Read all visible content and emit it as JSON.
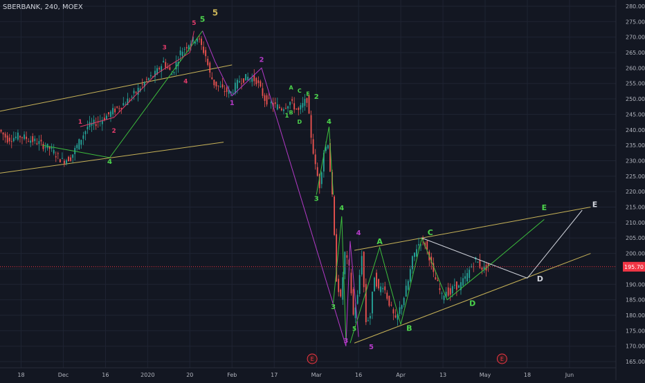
{
  "header": {
    "title": "SBERBANK, 240, MOEX"
  },
  "colors": {
    "background": "#131722",
    "grid": "#1f2433",
    "text": "#b2b5be",
    "up": "#26a69a",
    "down": "#ef5350",
    "channel": "#c9b458",
    "wave_green": "#3dbf3d",
    "wave_green_label": "#4cd44c",
    "wave_magenta": "#b43ac8",
    "wave_pink": "#e03a6a",
    "triangle": "#d1d4dc",
    "price_line": "#f23645"
  },
  "chart_data": {
    "type": "candlestick",
    "yaxis": {
      "ticks": [
        165,
        170,
        175,
        180,
        185,
        190,
        195,
        200,
        205,
        210,
        215,
        220,
        225,
        230,
        235,
        240,
        245,
        250,
        255,
        260,
        265,
        270,
        275,
        280
      ],
      "tick_format": ".2f",
      "ylim": [
        163,
        282
      ]
    },
    "xaxis": {
      "ticks": [
        {
          "label": "18",
          "x": 6
        },
        {
          "label": "Dec",
          "x": 16
        },
        {
          "label": "16",
          "x": 26
        },
        {
          "label": "2020",
          "x": 36
        },
        {
          "label": "20",
          "x": 46
        },
        {
          "label": "Feb",
          "x": 56
        },
        {
          "label": "17",
          "x": 66
        },
        {
          "label": "Mar",
          "x": 76
        },
        {
          "label": "16",
          "x": 86
        },
        {
          "label": "Apr",
          "x": 96
        },
        {
          "label": "13",
          "x": 106
        },
        {
          "label": "May",
          "x": 116
        },
        {
          "label": "18",
          "x": 126
        },
        {
          "label": "Jun",
          "x": 136
        }
      ],
      "xlim": [
        1,
        147
      ]
    },
    "last_price": {
      "value": 195.7,
      "label": "195.70"
    },
    "price_path": [
      [
        1,
        240
      ],
      [
        3,
        237
      ],
      [
        6,
        238
      ],
      [
        10,
        236
      ],
      [
        13,
        234
      ],
      [
        16,
        230
      ],
      [
        18,
        231
      ],
      [
        20,
        236
      ],
      [
        22,
        241
      ],
      [
        25,
        243
      ],
      [
        27,
        245
      ],
      [
        30,
        248
      ],
      [
        32,
        250
      ],
      [
        34,
        253
      ],
      [
        36,
        256
      ],
      [
        38,
        258
      ],
      [
        40,
        262
      ],
      [
        42,
        258
      ],
      [
        44,
        265
      ],
      [
        46,
        268
      ],
      [
        48,
        270
      ],
      [
        50,
        264
      ],
      [
        51,
        258
      ],
      [
        52,
        255
      ],
      [
        54,
        253
      ],
      [
        56,
        252
      ],
      [
        58,
        256
      ],
      [
        60,
        257
      ],
      [
        62,
        256
      ],
      [
        64,
        250
      ],
      [
        66,
        248
      ],
      [
        68,
        247
      ],
      [
        70,
        249
      ],
      [
        72,
        246
      ],
      [
        74,
        250
      ],
      [
        75,
        238
      ],
      [
        76,
        228
      ],
      [
        77,
        222
      ],
      [
        78,
        233
      ],
      [
        79,
        236
      ],
      [
        80,
        218
      ],
      [
        81,
        192
      ],
      [
        82,
        185
      ],
      [
        83,
        200
      ],
      [
        84,
        195
      ],
      [
        85,
        180
      ],
      [
        86,
        186
      ],
      [
        87,
        200
      ],
      [
        88,
        178
      ],
      [
        89,
        180
      ],
      [
        90,
        193
      ],
      [
        91,
        188
      ],
      [
        92,
        190
      ],
      [
        93,
        186
      ],
      [
        94,
        182
      ],
      [
        95,
        178
      ],
      [
        96,
        182
      ],
      [
        97,
        186
      ],
      [
        98,
        191
      ],
      [
        99,
        198
      ],
      [
        100,
        202
      ],
      [
        101,
        204
      ],
      [
        102,
        203
      ],
      [
        103,
        199
      ],
      [
        104,
        193
      ],
      [
        105,
        190
      ],
      [
        106,
        186
      ],
      [
        107,
        188
      ],
      [
        108,
        187
      ],
      [
        109,
        190
      ],
      [
        110,
        189
      ],
      [
        111,
        191
      ],
      [
        112,
        193
      ],
      [
        113,
        196
      ],
      [
        114,
        198
      ],
      [
        115,
        196
      ],
      [
        116,
        195
      ],
      [
        117,
        196
      ]
    ],
    "channels": [
      {
        "from": [
          1,
          246
        ],
        "to": [
          56,
          261
        ]
      },
      {
        "from": [
          1,
          226
        ],
        "to": [
          54,
          236
        ]
      },
      {
        "from": [
          85,
          201
        ],
        "to": [
          141,
          215
        ]
      },
      {
        "from": [
          85,
          171
        ],
        "to": [
          141,
          200
        ]
      }
    ],
    "triangle_lines": [
      [
        [
          101,
          205
        ],
        [
          126,
          192
        ]
      ],
      [
        [
          126,
          192
        ],
        [
          139,
          214
        ]
      ]
    ],
    "wave_lines": [
      {
        "color": "wave_green",
        "points": [
          [
            11,
            235
          ],
          [
            27,
            231
          ],
          [
            49,
            272
          ]
        ]
      },
      {
        "color": "wave_magenta",
        "points": [
          [
            49,
            272
          ],
          [
            52,
            262
          ],
          [
            56,
            251
          ],
          [
            63,
            260
          ],
          [
            83,
            170
          ],
          [
            84,
            204
          ],
          [
            86,
            173
          ]
        ]
      },
      {
        "color": "wave_green",
        "points": [
          [
            76,
            219
          ],
          [
            79,
            241
          ],
          [
            80,
            219
          ]
        ]
      },
      {
        "color": "wave_green",
        "points": [
          [
            80,
            184
          ],
          [
            82,
            212
          ],
          [
            83,
            172
          ]
        ]
      },
      {
        "color": "wave_green",
        "points": [
          [
            84,
            171
          ],
          [
            91,
            202
          ],
          [
            96,
            177
          ],
          [
            101,
            205
          ],
          [
            107,
            185
          ],
          [
            116,
            195
          ],
          [
            130,
            211
          ]
        ]
      },
      {
        "color": "wave_pink",
        "points": [
          [
            20,
            241
          ],
          [
            28,
            244
          ],
          [
            38,
            258
          ],
          [
            46,
            265
          ],
          [
            47,
            272
          ]
        ]
      }
    ],
    "wave_labels": [
      {
        "text": "5",
        "x": 52,
        "y": 277,
        "color": "channel",
        "size": 12
      },
      {
        "text": "5",
        "x": 49,
        "y": 275,
        "color": "wave_green_label",
        "size": 11
      },
      {
        "text": "5",
        "x": 47,
        "y": 274,
        "color": "wave_pink",
        "size": 9
      },
      {
        "text": "3",
        "x": 40,
        "y": 266,
        "color": "wave_pink",
        "size": 9
      },
      {
        "text": "4",
        "x": 45,
        "y": 255,
        "color": "wave_pink",
        "size": 9
      },
      {
        "text": "1",
        "x": 20,
        "y": 242,
        "color": "wave_pink",
        "size": 9
      },
      {
        "text": "2",
        "x": 28,
        "y": 239,
        "color": "wave_pink",
        "size": 9
      },
      {
        "text": "4",
        "x": 27,
        "y": 229,
        "color": "wave_green_label",
        "size": 10
      },
      {
        "text": "2",
        "x": 63,
        "y": 262,
        "color": "wave_magenta",
        "size": 10
      },
      {
        "text": "1",
        "x": 56,
        "y": 248,
        "color": "wave_magenta",
        "size": 10
      },
      {
        "text": "A",
        "x": 70,
        "y": 253,
        "color": "wave_green_label",
        "size": 8
      },
      {
        "text": "C",
        "x": 72,
        "y": 252,
        "color": "wave_green_label",
        "size": 8
      },
      {
        "text": "E",
        "x": 74,
        "y": 251,
        "color": "wave_green_label",
        "size": 8
      },
      {
        "text": "2",
        "x": 76,
        "y": 250,
        "color": "wave_green_label",
        "size": 10
      },
      {
        "text": "1",
        "x": 69,
        "y": 244,
        "color": "wave_green_label",
        "size": 9
      },
      {
        "text": "B",
        "x": 70,
        "y": 245,
        "color": "wave_green_label",
        "size": 8
      },
      {
        "text": "D",
        "x": 72,
        "y": 242,
        "color": "wave_green_label",
        "size": 8
      },
      {
        "text": "4",
        "x": 79,
        "y": 242,
        "color": "wave_green_label",
        "size": 10
      },
      {
        "text": "3",
        "x": 76,
        "y": 217,
        "color": "wave_green_label",
        "size": 10
      },
      {
        "text": "4",
        "x": 82,
        "y": 214,
        "color": "wave_green_label",
        "size": 10
      },
      {
        "text": "3",
        "x": 80,
        "y": 182,
        "color": "wave_green_label",
        "size": 10
      },
      {
        "text": "4",
        "x": 86,
        "y": 206,
        "color": "wave_magenta",
        "size": 10
      },
      {
        "text": "5",
        "x": 85,
        "y": 175,
        "color": "wave_green_label",
        "size": 9
      },
      {
        "text": "3",
        "x": 83,
        "y": 171,
        "color": "wave_magenta",
        "size": 10
      },
      {
        "text": "5",
        "x": 89,
        "y": 169,
        "color": "wave_magenta",
        "size": 10
      },
      {
        "text": "A",
        "x": 91,
        "y": 203,
        "color": "wave_green_label",
        "size": 11
      },
      {
        "text": "B",
        "x": 98,
        "y": 175,
        "color": "wave_green_label",
        "size": 11
      },
      {
        "text": "C",
        "x": 103,
        "y": 206,
        "color": "wave_green_label",
        "size": 11
      },
      {
        "text": "D",
        "x": 113,
        "y": 183,
        "color": "wave_green_label",
        "size": 11
      },
      {
        "text": "E",
        "x": 130,
        "y": 214,
        "color": "wave_green_label",
        "size": 11
      },
      {
        "text": "D",
        "x": 129,
        "y": 191,
        "color": "triangle",
        "size": 11
      },
      {
        "text": "E",
        "x": 142,
        "y": 215,
        "color": "triangle",
        "size": 11
      }
    ],
    "event_markers": [
      {
        "label": "E",
        "x": 75
      },
      {
        "label": "E",
        "x": 120
      }
    ]
  }
}
